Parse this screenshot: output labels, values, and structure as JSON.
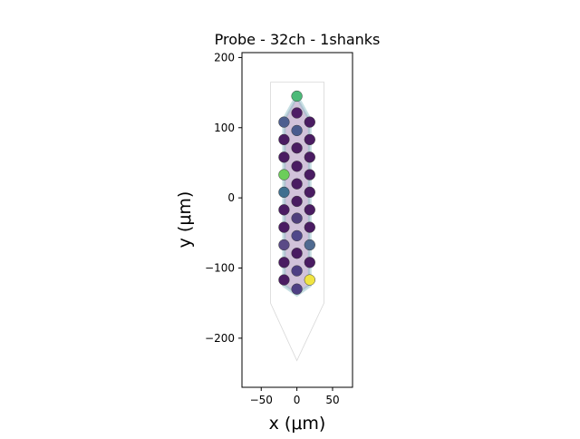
{
  "chart_data": {
    "type": "scatter",
    "title": "Probe - 32ch - 1shanks",
    "xlabel": "x (μm)",
    "ylabel": "y (μm)",
    "xlim": [
      -77,
      78
    ],
    "ylim": [
      -270,
      207
    ],
    "xticks": [
      -50,
      0,
      50
    ],
    "yticks": [
      -200,
      -100,
      0,
      100,
      200
    ],
    "xtick_labels": [
      "−50",
      "0",
      "50"
    ],
    "ytick_labels": [
      "−200",
      "−100",
      "0",
      "100",
      "200"
    ],
    "grid": false,
    "contact_radius": 7.5,
    "probe_outline": [
      [
        -37,
        165
      ],
      [
        38,
        165
      ],
      [
        38,
        -150
      ],
      [
        0,
        -232
      ],
      [
        -37,
        -150
      ],
      [
        -37,
        165
      ]
    ],
    "contacts": [
      {
        "x": 0,
        "y": 145,
        "color": "#4cba78"
      },
      {
        "x": -18,
        "y": 108,
        "color": "#4d5f8f"
      },
      {
        "x": 18,
        "y": 108,
        "color": "#4a1c62"
      },
      {
        "x": 0,
        "y": 121,
        "color": "#4f1e66"
      },
      {
        "x": -18,
        "y": 83,
        "color": "#4a1c62"
      },
      {
        "x": 18,
        "y": 83,
        "color": "#4a1c62"
      },
      {
        "x": 0,
        "y": 96,
        "color": "#4a5b8e"
      },
      {
        "x": -18,
        "y": 58,
        "color": "#4a1c62"
      },
      {
        "x": 18,
        "y": 58,
        "color": "#4a1c62"
      },
      {
        "x": 0,
        "y": 71,
        "color": "#4a1c62"
      },
      {
        "x": -18,
        "y": 33,
        "color": "#6ccd5a"
      },
      {
        "x": 18,
        "y": 33,
        "color": "#4a1c62"
      },
      {
        "x": 0,
        "y": 45,
        "color": "#4a1c62"
      },
      {
        "x": -18,
        "y": 8,
        "color": "#3f6f8f"
      },
      {
        "x": 18,
        "y": 8,
        "color": "#4a1c62"
      },
      {
        "x": 0,
        "y": 20,
        "color": "#4a1c62"
      },
      {
        "x": -18,
        "y": -17,
        "color": "#4a1c62"
      },
      {
        "x": 18,
        "y": -17,
        "color": "#4a1c62"
      },
      {
        "x": 0,
        "y": -5,
        "color": "#4a1c62"
      },
      {
        "x": -18,
        "y": -42,
        "color": "#4a1c62"
      },
      {
        "x": 18,
        "y": -42,
        "color": "#4a1c62"
      },
      {
        "x": 0,
        "y": -29,
        "color": "#4f3f7c"
      },
      {
        "x": -18,
        "y": -67,
        "color": "#5a4a86"
      },
      {
        "x": 18,
        "y": -67,
        "color": "#4f6a90"
      },
      {
        "x": 0,
        "y": -54,
        "color": "#50488a"
      },
      {
        "x": -18,
        "y": -92,
        "color": "#4a1c62"
      },
      {
        "x": 18,
        "y": -92,
        "color": "#4a1c62"
      },
      {
        "x": 0,
        "y": -79,
        "color": "#4a1c62"
      },
      {
        "x": -18,
        "y": -117,
        "color": "#4a1c62"
      },
      {
        "x": 18,
        "y": -117,
        "color": "#f0e442"
      },
      {
        "x": 0,
        "y": -104,
        "color": "#4e3f84"
      },
      {
        "x": 0,
        "y": -130,
        "color": "#4e3f84"
      }
    ]
  }
}
